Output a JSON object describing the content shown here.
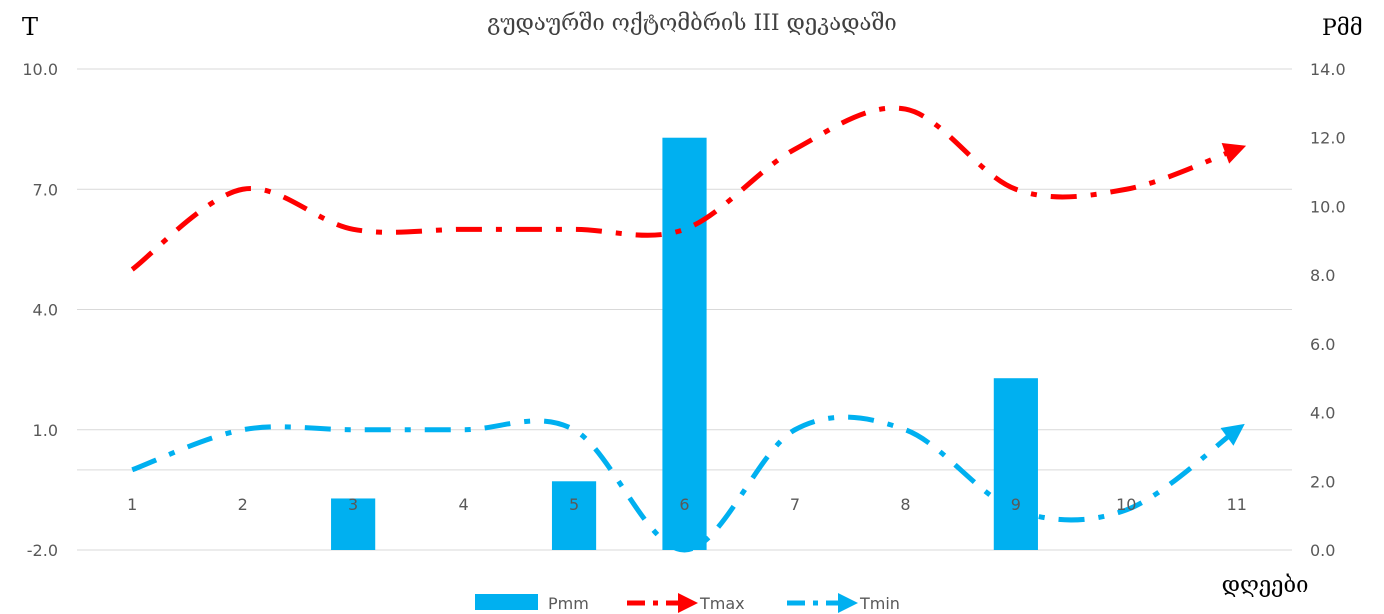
{
  "chart_data": {
    "type": "bar+line",
    "title": "გუდაურში ოქტომბრის III დეკადაში",
    "ylabel_left": "T",
    "ylabel_right": "Pმმ",
    "xlabel": "დღეები",
    "categories": [
      "1",
      "2",
      "3",
      "4",
      "5",
      "6",
      "7",
      "8",
      "9",
      "10",
      "11"
    ],
    "y_left": {
      "min": -2.0,
      "max": 10.0,
      "ticks": [
        "10.0",
        "7.0",
        "4.0",
        "1.0",
        "-2.0"
      ]
    },
    "y_right": {
      "min": 0.0,
      "max": 14.0,
      "ticks": [
        "14.0",
        "12.0",
        "10.0",
        "8.0",
        "6.0",
        "4.0",
        "2.0",
        "0.0"
      ]
    },
    "x_axis_at_left_value": 0,
    "grid": true,
    "legend_position": "bottom",
    "series": [
      {
        "name": "Pmm",
        "type": "bar",
        "axis": "right",
        "color": "#00B0F0",
        "values": [
          0,
          0,
          1.5,
          0,
          2.0,
          12.0,
          0,
          0,
          5.0,
          0,
          0
        ]
      },
      {
        "name": "Tmax",
        "type": "line",
        "axis": "left",
        "color": "#FF0000",
        "dash": "dash-dot",
        "values": [
          5,
          7,
          6,
          6,
          6,
          6,
          8,
          9,
          7,
          7,
          8
        ]
      },
      {
        "name": "Tmin",
        "type": "line",
        "axis": "left",
        "color": "#00B0F0",
        "dash": "dash-dot",
        "values": [
          0,
          1,
          1,
          1,
          1,
          -2,
          1,
          1,
          -1,
          -1,
          1
        ]
      }
    ]
  }
}
